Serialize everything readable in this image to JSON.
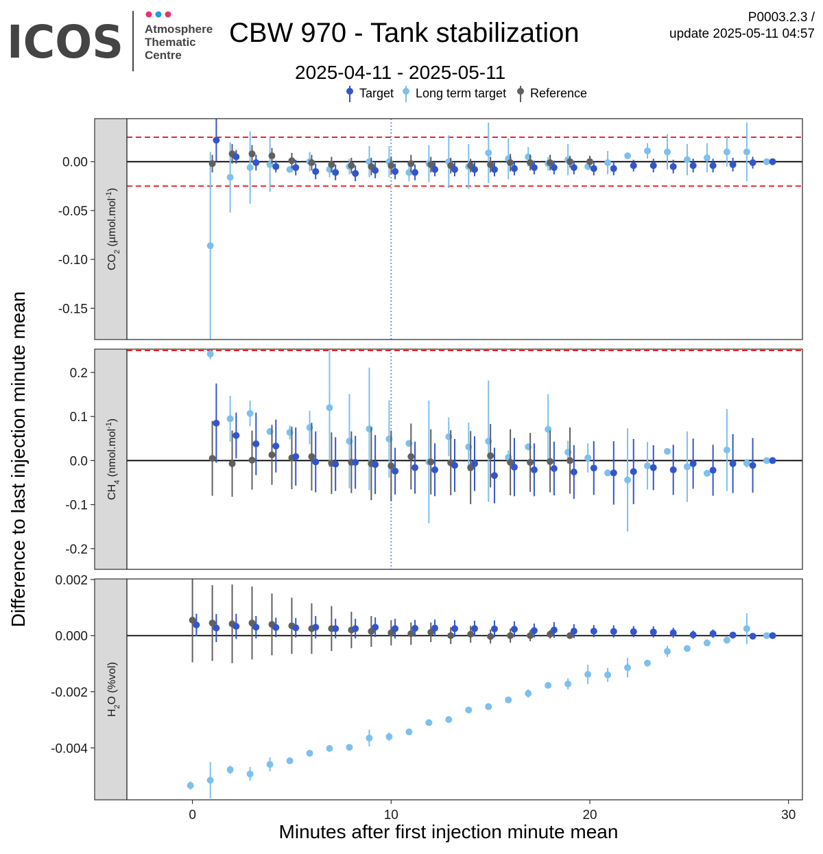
{
  "header": {
    "logo_text": "ICOS",
    "logo_sub": [
      "Atmosphere",
      "Thematic",
      "Centre"
    ],
    "title": "CBW 970 - Tank stabilization",
    "date_range": "2025-04-11 - 2025-05-11",
    "code": "P0003.2.3 /",
    "update": "update  2025-05-11 04:57"
  },
  "colors": {
    "target": "#3355CC",
    "long_term_target": "#7DC0EE",
    "reference": "#606060",
    "limit_line": "#E41A1C",
    "marker_line": "#7799CC",
    "strip_bg": "#D9D9D9",
    "logo_dots": [
      "#E8336E",
      "#1E9BE8",
      "#E8336E"
    ]
  },
  "chart_data": {
    "type": "scatter",
    "subtype": "faceted point range with error bars",
    "xlabel": "Minutes after first injection minute mean",
    "ylabel": "Difference to last injection minute mean",
    "x_ticks": [
      0,
      10,
      20,
      30
    ],
    "xlim": [
      -3.3,
      30.7
    ],
    "vertical_marker_x": 10,
    "legend": {
      "placement": "top-center",
      "entries": [
        "Target",
        "Long term target",
        "Reference"
      ]
    },
    "facets": [
      {
        "id": "co2",
        "label_parts": [
          "CO",
          "2",
          " (µmol.mol",
          "-1",
          ")"
        ],
        "ylim": [
          -0.182,
          0.044
        ],
        "y_ticks": [
          0.0,
          -0.05,
          -0.1,
          -0.15
        ],
        "y_tick_labels": [
          "0.00",
          "-0.05",
          "-0.10",
          "-0.15"
        ],
        "limit_lines": [
          0.025,
          -0.025
        ],
        "series": [
          {
            "name": "Target",
            "x": [
              1.2,
              2.2,
              3.2,
              4.2,
              5.2,
              6.2,
              7.2,
              8.2,
              9.2,
              10.2,
              11.2,
              12.2,
              13.2,
              14.2,
              15.2,
              16.2,
              17.2,
              18.2,
              19.2,
              20.2,
              21.2,
              22.2,
              23.2,
              24.2,
              25.2,
              26.2,
              27.2,
              28.2,
              29.2
            ],
            "y": [
              0.022,
              0.005,
              -0.001,
              -0.005,
              -0.006,
              -0.01,
              -0.011,
              -0.012,
              -0.009,
              -0.01,
              -0.011,
              -0.008,
              -0.008,
              -0.008,
              -0.008,
              -0.007,
              -0.006,
              -0.006,
              -0.006,
              -0.007,
              -0.007,
              -0.004,
              -0.004,
              -0.005,
              -0.004,
              -0.004,
              -0.003,
              -0.001,
              0.0
            ],
            "err": [
              0.022,
              0.007,
              0.008,
              0.006,
              0.008,
              0.008,
              0.008,
              0.008,
              0.008,
              0.008,
              0.008,
              0.007,
              0.007,
              0.007,
              0.007,
              0.007,
              0.007,
              0.007,
              0.007,
              0.007,
              0.007,
              0.006,
              0.007,
              0.007,
              0.007,
              0.007,
              0.007,
              0.006,
              0.0
            ]
          },
          {
            "name": "Long term target",
            "x": [
              0.9,
              1.9,
              2.9,
              3.9,
              4.9,
              5.9,
              6.9,
              7.9,
              8.9,
              9.9,
              10.9,
              11.9,
              12.9,
              13.9,
              14.9,
              15.9,
              16.9,
              17.9,
              18.9,
              19.9,
              20.9,
              21.9,
              22.9,
              23.9,
              24.9,
              25.9,
              26.9,
              27.9,
              28.9
            ],
            "y": [
              -0.086,
              -0.016,
              -0.006,
              -0.003,
              -0.008,
              0.0,
              -0.008,
              -0.005,
              0.0,
              0.0,
              -0.011,
              -0.002,
              0.0,
              -0.005,
              0.009,
              0.003,
              0.005,
              -0.002,
              0.002,
              -0.005,
              -0.001,
              0.006,
              0.011,
              0.01,
              0.002,
              0.004,
              0.01,
              0.01,
              0.0
            ],
            "err": [
              0.096,
              0.036,
              0.037,
              0.028,
              0.003,
              0.01,
              0.008,
              0.008,
              0.016,
              0.016,
              0.009,
              0.019,
              0.027,
              0.023,
              0.031,
              0.021,
              0.01,
              0.007,
              0.016,
              0.001,
              0.012,
              0.002,
              0.008,
              0.018,
              0.016,
              0.015,
              0.015,
              0.03,
              0.0
            ]
          },
          {
            "name": "Reference",
            "x": [
              1.0,
              2.0,
              3.0,
              4.0,
              5.0,
              6.0,
              7.0,
              8.0,
              9.0,
              10.0,
              11.0,
              12.0,
              13.0,
              14.0,
              15.0,
              16.0,
              17.0,
              18.0,
              19.0,
              20.0
            ],
            "y": [
              -0.002,
              0.008,
              0.008,
              0.006,
              0.001,
              -0.001,
              -0.003,
              -0.004,
              -0.005,
              -0.004,
              -0.002,
              -0.003,
              -0.004,
              -0.004,
              -0.003,
              -0.001,
              -0.001,
              -0.001,
              0.0,
              0.0
            ],
            "err": [
              0.009,
              0.01,
              0.009,
              0.008,
              0.008,
              0.008,
              0.008,
              0.008,
              0.009,
              0.009,
              0.009,
              0.008,
              0.008,
              0.007,
              0.008,
              0.009,
              0.008,
              0.008,
              0.006,
              0.006
            ]
          }
        ]
      },
      {
        "id": "ch4",
        "label_parts": [
          "CH",
          "4",
          " (nmol.mol",
          "-1",
          ")"
        ],
        "ylim": [
          -0.247,
          0.253
        ],
        "y_ticks": [
          0.2,
          0.1,
          0.0,
          -0.1,
          -0.2
        ],
        "y_tick_labels": [
          "0.2",
          "0.1",
          "0.0",
          "-0.1",
          "-0.2"
        ],
        "limit_lines": [
          0.25
        ],
        "series": [
          {
            "name": "Target",
            "x": [
              1.2,
              2.2,
              3.2,
              4.2,
              5.2,
              6.2,
              7.2,
              8.2,
              9.2,
              10.2,
              11.2,
              12.2,
              13.2,
              14.2,
              15.2,
              16.2,
              17.2,
              18.2,
              19.2,
              20.2,
              21.2,
              22.2,
              23.2,
              24.2,
              25.2,
              26.2,
              27.2,
              28.2,
              29.2
            ],
            "y": [
              0.085,
              0.057,
              0.038,
              0.033,
              0.009,
              -0.003,
              -0.008,
              -0.004,
              -0.009,
              -0.024,
              -0.016,
              -0.021,
              -0.011,
              -0.007,
              -0.034,
              -0.015,
              -0.021,
              -0.018,
              -0.026,
              -0.017,
              -0.028,
              -0.025,
              -0.016,
              -0.021,
              -0.007,
              -0.022,
              -0.007,
              -0.011,
              0.0
            ],
            "err": [
              0.09,
              0.052,
              0.071,
              0.06,
              0.066,
              0.069,
              0.061,
              0.06,
              0.067,
              0.053,
              0.059,
              0.06,
              0.06,
              0.062,
              0.063,
              0.066,
              0.06,
              0.061,
              0.061,
              0.061,
              0.072,
              0.074,
              0.051,
              0.057,
              0.057,
              0.058,
              0.067,
              0.062,
              0.0
            ]
          },
          {
            "name": "Long term target",
            "x": [
              0.9,
              1.9,
              2.9,
              3.9,
              4.9,
              5.9,
              6.9,
              7.9,
              8.9,
              9.9,
              10.9,
              11.9,
              12.9,
              13.9,
              14.9,
              15.9,
              16.9,
              17.9,
              18.9,
              19.9,
              20.9,
              21.9,
              22.9,
              23.9,
              24.9,
              25.9,
              26.9,
              27.9,
              28.9
            ],
            "y": [
              0.242,
              0.095,
              0.107,
              0.066,
              0.064,
              0.075,
              0.12,
              0.044,
              0.072,
              0.049,
              0.039,
              -0.003,
              0.054,
              0.031,
              0.044,
              0.007,
              0.031,
              0.071,
              0.019,
              0.006,
              -0.028,
              -0.044,
              -0.012,
              0.021,
              -0.014,
              -0.029,
              0.024,
              -0.006,
              0.0
            ],
            "err": [
              0.012,
              0.052,
              0.029,
              0.006,
              0.016,
              0.038,
              0.135,
              0.107,
              0.139,
              0.088,
              0.006,
              0.139,
              0.044,
              0.055,
              0.138,
              0.016,
              0.008,
              0.08,
              0.026,
              0.033,
              0.003,
              0.117,
              0.054,
              0.003,
              0.08,
              0.002,
              0.093,
              0.01,
              0.0
            ]
          },
          {
            "name": "Reference",
            "x": [
              1.0,
              2.0,
              3.0,
              4.0,
              5.0,
              6.0,
              7.0,
              8.0,
              9.0,
              10.0,
              11.0,
              12.0,
              13.0,
              14.0,
              15.0,
              16.0,
              17.0,
              18.0,
              19.0
            ],
            "y": [
              0.005,
              -0.007,
              0.001,
              0.013,
              0.006,
              0.009,
              -0.006,
              -0.004,
              -0.007,
              -0.012,
              0.009,
              -0.003,
              -0.005,
              -0.016,
              0.011,
              -0.004,
              -0.004,
              -0.002,
              0.0
            ],
            "err": [
              0.085,
              0.075,
              0.067,
              0.068,
              0.071,
              0.077,
              0.07,
              0.07,
              0.083,
              0.08,
              0.075,
              0.074,
              0.074,
              0.083,
              0.072,
              0.075,
              0.067,
              0.07,
              0.075
            ]
          }
        ]
      },
      {
        "id": "h2o",
        "label_parts": [
          "H",
          "2",
          "O (%vol)",
          "",
          ""
        ],
        "ylim": [
          -0.00585,
          0.00202
        ],
        "y_ticks": [
          0.002,
          0.0,
          -0.002,
          -0.004
        ],
        "y_tick_labels": [
          "0.002",
          "0.000",
          "-0.002",
          "-0.004"
        ],
        "limit_lines": [],
        "series": [
          {
            "name": "Target",
            "x": [
              0.2,
              1.2,
              2.2,
              3.2,
              4.2,
              5.2,
              6.2,
              7.2,
              8.2,
              9.2,
              10.2,
              11.2,
              12.2,
              13.2,
              14.2,
              15.2,
              16.2,
              17.2,
              18.2,
              19.2,
              20.2,
              21.2,
              22.2,
              23.2,
              24.2,
              25.2,
              26.2,
              27.2,
              28.2,
              29.2
            ],
            "y": [
              0.00038,
              0.00027,
              0.00033,
              0.0003,
              0.00029,
              0.00028,
              0.0003,
              0.00025,
              0.00025,
              0.0003,
              0.00025,
              0.00026,
              0.00027,
              0.00025,
              0.00025,
              0.00024,
              0.00023,
              0.00018,
              0.0002,
              0.00016,
              0.00016,
              0.00015,
              0.00014,
              0.00013,
              0.0001,
              3e-05,
              7e-05,
              2e-05,
              -2e-05,
              0.0
            ],
            "err": [
              0.0004,
              0.0005,
              0.00045,
              0.0004,
              0.00035,
              0.00035,
              0.0004,
              0.00035,
              0.00035,
              0.00035,
              0.00035,
              0.0003,
              0.0003,
              0.0003,
              0.00028,
              0.0003,
              0.00028,
              0.00025,
              0.00028,
              0.00025,
              0.00022,
              0.00022,
              0.0002,
              0.0002,
              0.00018,
              0.00015,
              0.00015,
              0.00012,
              0.0001,
              0.0
            ]
          },
          {
            "name": "Long term target",
            "x": [
              -0.1,
              0.9,
              1.9,
              2.9,
              3.9,
              4.9,
              5.9,
              6.9,
              7.9,
              8.9,
              9.9,
              10.9,
              11.9,
              12.9,
              13.9,
              14.9,
              15.9,
              16.9,
              17.9,
              18.9,
              19.9,
              20.9,
              21.9,
              22.9,
              23.9,
              24.9,
              25.9,
              26.9,
              27.9,
              28.9
            ],
            "y": [
              -0.00534,
              -0.00515,
              -0.00478,
              -0.00493,
              -0.00459,
              -0.00446,
              -0.00419,
              -0.00402,
              -0.00398,
              -0.00365,
              -0.0036,
              -0.00343,
              -0.0031,
              -0.00299,
              -0.00265,
              -0.00253,
              -0.00229,
              -0.00206,
              -0.00177,
              -0.00172,
              -0.00138,
              -0.0014,
              -0.00114,
              -0.00098,
              -0.00056,
              -0.00046,
              -0.00026,
              -0.00016,
              0.00025,
              0.0
            ],
            "err": [
              0.00015,
              0.00065,
              0.00015,
              0.00025,
              0.00025,
              0.0001,
              5e-05,
              5e-05,
              0.0001,
              0.0003,
              0.00015,
              0.0001,
              0.0001,
              0.0001,
              5e-05,
              5e-05,
              5e-05,
              0.00015,
              5e-05,
              0.0002,
              0.00035,
              0.00025,
              0.00035,
              5e-05,
              0.0002,
              5e-05,
              5e-05,
              0.0001,
              0.00055,
              0.0
            ]
          },
          {
            "name": "Reference",
            "x": [
              0.0,
              1.0,
              2.0,
              3.0,
              4.0,
              5.0,
              6.0,
              7.0,
              8.0,
              9.0,
              10.0,
              11.0,
              12.0,
              13.0,
              14.0,
              15.0,
              16.0,
              17.0,
              18.0,
              19.0
            ],
            "y": [
              0.00055,
              0.00045,
              0.00042,
              0.00045,
              0.0004,
              0.00035,
              0.00025,
              0.00025,
              0.0002,
              0.00015,
              0.0001,
              7e-05,
              0.00012,
              0.0,
              5e-05,
              -3e-05,
              0.0,
              0.0,
              5e-05,
              0.0
            ],
            "err": [
              0.0015,
              0.00135,
              0.0014,
              0.0013,
              0.0011,
              0.001,
              0.0009,
              0.0008,
              0.00065,
              0.00055,
              0.00045,
              0.0004,
              0.00035,
              0.0003,
              0.0003,
              0.00025,
              0.00025,
              0.0002,
              0.00015,
              5e-05
            ]
          }
        ]
      }
    ]
  }
}
